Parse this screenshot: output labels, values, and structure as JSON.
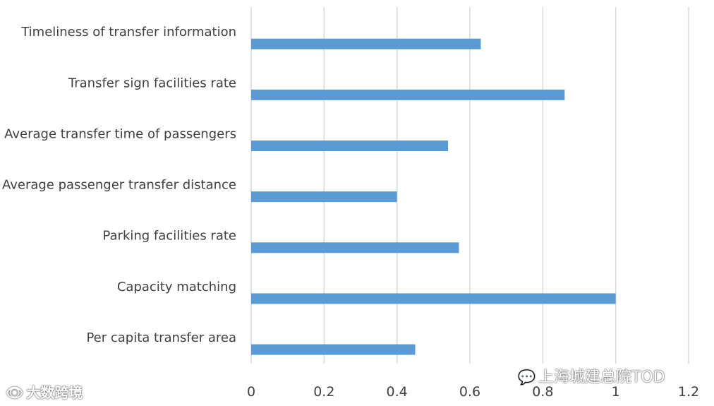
{
  "chart_data": {
    "type": "bar",
    "orientation": "horizontal",
    "title": "",
    "xlabel": "",
    "ylabel": "",
    "categories": [
      "Timeliness of transfer information",
      "Transfer sign facilities rate",
      "Average transfer time of passengers",
      "Average passenger transfer distance",
      "Parking facilities rate",
      "Capacity matching",
      "Per capita transfer area"
    ],
    "values": [
      0.63,
      0.86,
      0.54,
      0.4,
      0.57,
      1.0,
      0.45
    ],
    "xlim": [
      0,
      1.2
    ],
    "xticks": [
      "0",
      "0.2",
      "0.4",
      "0.6",
      "0.8",
      "1",
      "1.2"
    ],
    "grid": "vertical",
    "bar_color": "#5b9bd5"
  },
  "watermarks": {
    "left": "大数跨境",
    "right": "上海城建总院TOD"
  }
}
